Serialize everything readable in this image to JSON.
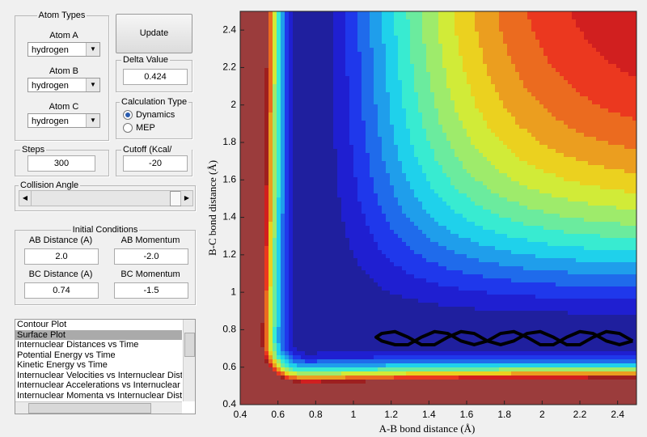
{
  "atom_types": {
    "title": "Atom Types",
    "atoms": [
      {
        "label": "Atom A",
        "value": "hydrogen"
      },
      {
        "label": "Atom B",
        "value": "hydrogen"
      },
      {
        "label": "Atom C",
        "value": "hydrogen"
      }
    ]
  },
  "update_button": "Update",
  "delta_value": {
    "label": "Delta Value",
    "value": "0.424"
  },
  "calculation_type": {
    "title": "Calculation Type",
    "options": [
      "Dynamics",
      "MEP"
    ],
    "selected": 0
  },
  "steps": {
    "label": "Steps",
    "value": "300"
  },
  "cutoff": {
    "label": "Cutoff (Kcal/ mol)",
    "value": "-20"
  },
  "collision_angle": {
    "label": "Collision Angle"
  },
  "initial_conditions": {
    "title": "Initial Conditions",
    "fields": [
      {
        "label": "AB Distance (A)",
        "value": "2.0"
      },
      {
        "label": "AB Momentum",
        "value": "-2.0"
      },
      {
        "label": "BC Distance (A)",
        "value": "0.74"
      },
      {
        "label": "BC Momentum",
        "value": "-1.5"
      }
    ]
  },
  "plot_list": {
    "items": [
      "Contour Plot",
      "Surface Plot",
      "Internuclear Distances vs Time",
      "Potential Energy vs Time",
      "Kinetic Energy vs Time",
      "Internuclear Velocities vs Internuclear Distance",
      "Internuclear Accelerations vs Internuclear Distance",
      "Internuclear Momenta vs Internuclear Distance"
    ],
    "selected": 1
  },
  "chart_data": {
    "type": "contour",
    "xlabel": "A-B bond distance (Å)",
    "ylabel": "B-C bond distance (Å)",
    "xlim": [
      0.4,
      2.5
    ],
    "ylim": [
      0.4,
      2.5
    ],
    "xticks": [
      0.4,
      0.6,
      0.8,
      1,
      1.2,
      1.4,
      1.6,
      1.8,
      2,
      2.2,
      2.4
    ],
    "yticks": [
      0.4,
      0.6,
      0.8,
      1,
      1.2,
      1.4,
      1.6,
      1.8,
      2,
      2.2,
      2.4
    ],
    "series": [
      {
        "color": "#000000",
        "x": [
          2.48,
          2.41,
          2.34,
          2.27,
          2.2,
          2.13,
          2.06,
          1.99,
          1.92,
          1.85,
          1.78,
          1.71,
          1.64,
          1.57,
          1.5,
          1.43,
          1.36,
          1.29,
          1.22,
          1.15,
          1.12,
          1.15,
          1.22,
          1.29,
          1.36,
          1.43,
          1.5,
          1.57,
          1.64,
          1.71,
          1.78,
          1.85,
          1.92,
          1.99,
          2.06,
          2.13,
          2.2,
          2.27,
          2.34,
          2.41,
          2.48
        ],
        "values": [
          0.74,
          0.78,
          0.79,
          0.76,
          0.72,
          0.72,
          0.76,
          0.79,
          0.78,
          0.74,
          0.72,
          0.74,
          0.78,
          0.79,
          0.76,
          0.72,
          0.72,
          0.76,
          0.79,
          0.78,
          0.76,
          0.74,
          0.72,
          0.72,
          0.76,
          0.79,
          0.78,
          0.74,
          0.72,
          0.74,
          0.78,
          0.79,
          0.76,
          0.72,
          0.72,
          0.76,
          0.79,
          0.78,
          0.74,
          0.72,
          0.74
        ]
      }
    ]
  }
}
